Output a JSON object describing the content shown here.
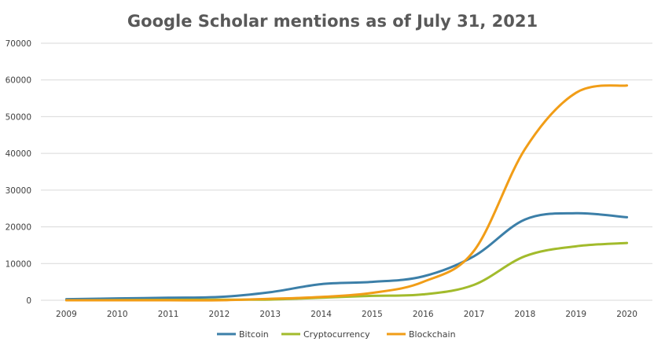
{
  "chart_data": {
    "type": "line",
    "title": "Google Scholar mentions as of July 31, 2021",
    "xlabel": "",
    "ylabel": "",
    "categories": [
      "2009",
      "2010",
      "2011",
      "2012",
      "2013",
      "2014",
      "2015",
      "2016",
      "2017",
      "2018",
      "2019",
      "2020"
    ],
    "ylim": [
      0,
      70000
    ],
    "yticks": [
      "0",
      "10000",
      "20000",
      "30000",
      "40000",
      "50000",
      "60000",
      "70000"
    ],
    "grid": true,
    "legend_position": "bottom",
    "series": [
      {
        "name": "Bitcoin",
        "color": "#3c7fa8",
        "values": [
          300,
          500,
          700,
          900,
          2200,
          4400,
          5000,
          6500,
          12000,
          22000,
          23700,
          22600
        ]
      },
      {
        "name": "Cryptocurrency",
        "color": "#a2bb2c",
        "values": [
          0,
          50,
          100,
          150,
          200,
          700,
          1200,
          1600,
          4200,
          12000,
          14700,
          15600
        ]
      },
      {
        "name": "Blockchain",
        "color": "#f19d17",
        "values": [
          0,
          0,
          0,
          0,
          400,
          900,
          2000,
          5000,
          13500,
          41200,
          56500,
          58500
        ]
      }
    ]
  }
}
